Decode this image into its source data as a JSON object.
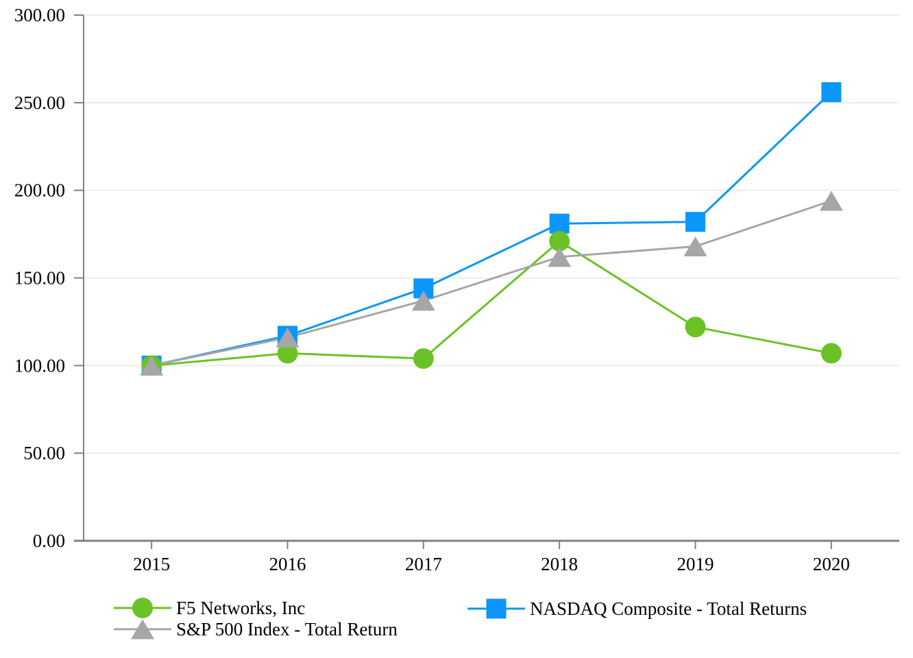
{
  "page": {
    "background": "#ffffff",
    "title": ""
  },
  "chart_data": {
    "type": "line",
    "title": "",
    "xlabel": "",
    "ylabel": "",
    "categories": [
      "2015",
      "2016",
      "2017",
      "2018",
      "2019",
      "2020"
    ],
    "y_tick_labels": [
      "0.00",
      "50.00",
      "100.00",
      "150.00",
      "200.00",
      "250.00",
      "300.00"
    ],
    "ylim": [
      0,
      300
    ],
    "y_tick_step": 50,
    "grid": "horizontal",
    "legend_position": "bottom",
    "series": [
      {
        "name": "F5 Networks, Inc",
        "marker": "circle",
        "color": "#6AC226",
        "values": [
          100,
          107,
          104,
          171,
          122,
          107
        ]
      },
      {
        "name": "NASDAQ Composite - Total Returns",
        "marker": "square",
        "color": "#0A96FA",
        "values": [
          100,
          117,
          144,
          181,
          182,
          256
        ]
      },
      {
        "name": "S&P 500 Index - Total Return",
        "marker": "triangle",
        "color": "#A6A6A6",
        "values": [
          100,
          116,
          137,
          162,
          168,
          194
        ]
      }
    ],
    "colors": {
      "axis": "#808080",
      "grid": "#ECECEC",
      "text": "#000000"
    }
  }
}
